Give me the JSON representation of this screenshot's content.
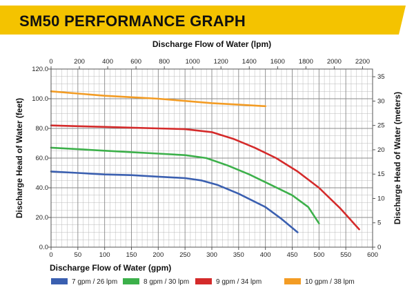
{
  "header": {
    "title": "SM50 PERFORMANCE GRAPH"
  },
  "colors": {
    "banner": "#f4c300",
    "grid": "#b8b8b8",
    "axis": "#555555"
  },
  "chart_data": {
    "type": "line",
    "title": "SM50 PERFORMANCE GRAPH",
    "xlabel": "Discharge Flow of Water (gpm)",
    "x2label": "Discharge Flow of Water (lpm)",
    "ylabel": "Discharge Head of Water (feet)",
    "y2label": "Discharge Head of Water (meters)",
    "xlim": [
      0,
      600
    ],
    "ylim": [
      0,
      120
    ],
    "x2lim": [
      0,
      2271
    ],
    "y2lim": [
      0,
      36.58
    ],
    "x_ticks": [
      0,
      50,
      100,
      150,
      200,
      250,
      300,
      350,
      400,
      450,
      500,
      550,
      600
    ],
    "y_ticks": [
      0,
      20,
      40,
      60,
      80,
      100,
      120
    ],
    "y_tick_labels": [
      "0.0",
      "20.0",
      "40.0",
      "60.0",
      "80.0",
      "100.0",
      "120.0"
    ],
    "x2_ticks": [
      0,
      200,
      400,
      600,
      800,
      1000,
      1200,
      1400,
      1600,
      1800,
      2000,
      2200
    ],
    "y2_ticks": [
      0,
      5,
      10,
      15,
      20,
      25,
      30,
      35
    ],
    "grid": true,
    "legend_position": "bottom",
    "series": [
      {
        "name": "7 gpm / 26 lpm",
        "color": "#3a5fb0",
        "x": [
          0,
          50,
          100,
          150,
          200,
          250,
          280,
          310,
          350,
          400,
          430,
          460
        ],
        "y": [
          51,
          50,
          49,
          48.5,
          47.5,
          46.5,
          45,
          42,
          36,
          27,
          19,
          10
        ]
      },
      {
        "name": "8 gpm / 30 lpm",
        "color": "#3cb04a",
        "x": [
          0,
          50,
          100,
          150,
          200,
          250,
          290,
          330,
          370,
          410,
          450,
          480,
          500
        ],
        "y": [
          67,
          66,
          65,
          64,
          63,
          62,
          60,
          55,
          49,
          42,
          35,
          27,
          16
        ]
      },
      {
        "name": "9 gpm / 34 lpm",
        "color": "#d42a2a",
        "x": [
          0,
          50,
          100,
          150,
          200,
          250,
          300,
          340,
          380,
          420,
          460,
          500,
          540,
          575
        ],
        "y": [
          82,
          81.5,
          81,
          80.5,
          80,
          79.5,
          77.5,
          73,
          67,
          60,
          51,
          40,
          26,
          12
        ]
      },
      {
        "name": "10 gpm / 38 lpm",
        "color": "#f39c24",
        "x": [
          0,
          50,
          100,
          150,
          200,
          250,
          300,
          350,
          400
        ],
        "y": [
          105,
          103.5,
          102,
          101,
          100,
          98.5,
          97,
          96,
          95
        ]
      }
    ]
  }
}
